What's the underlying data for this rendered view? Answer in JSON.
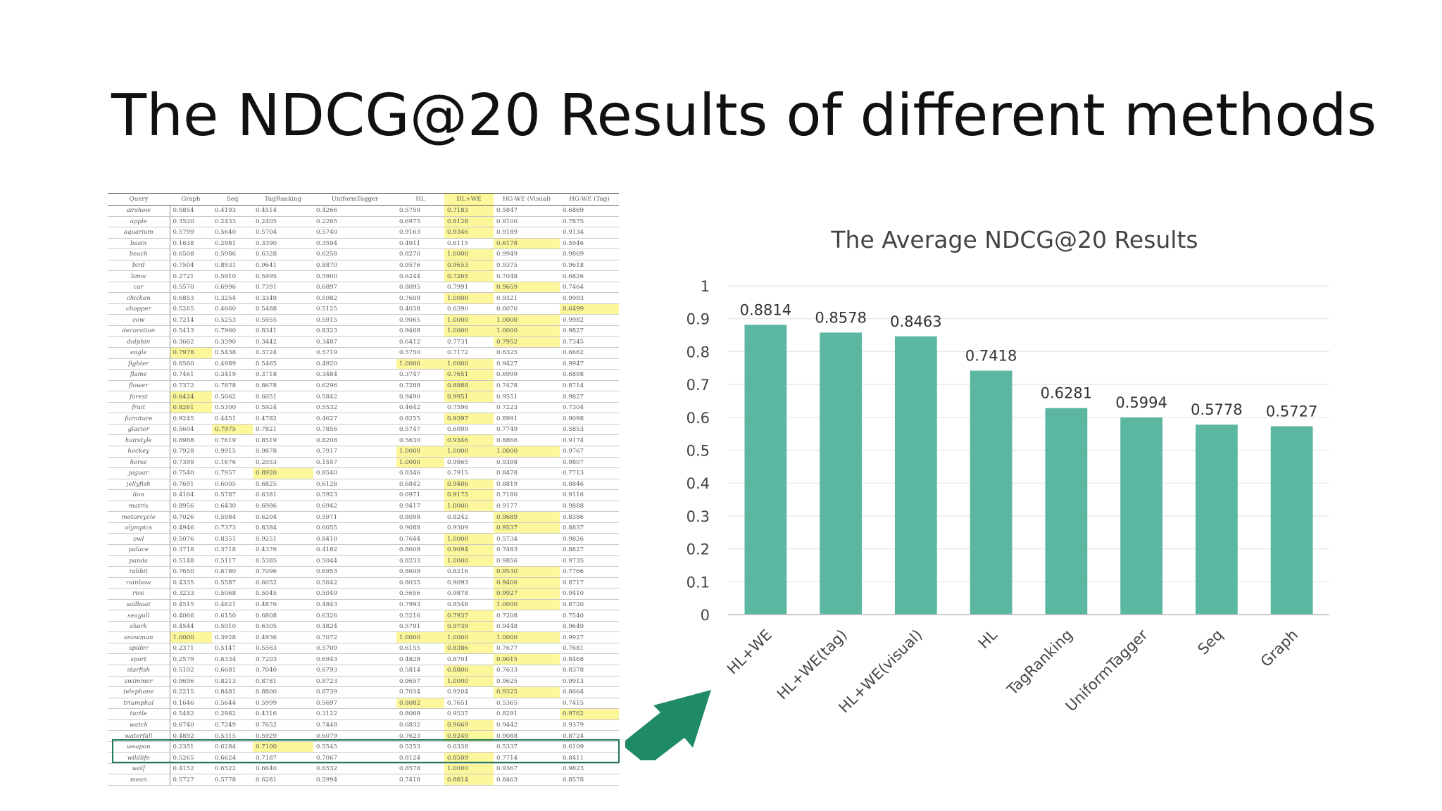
{
  "slide": {
    "title": "The NDCG@20 Results of different methods"
  },
  "table": {
    "columns": [
      "Query",
      "Graph",
      "Seq",
      "TagRanking",
      "UniformTagger",
      "HL",
      "HL+WE",
      "HG-WE (Visual)",
      "HG-WE (Tag)"
    ],
    "rows": [
      [
        "airshow",
        "0.5854",
        "0.4193",
        "0.4514",
        "0.4266",
        "0.5759",
        "0.7183",
        "0.5847",
        "0.6869"
      ],
      [
        "apple",
        "0.3520",
        "0.2433",
        "0.2405",
        "0.2265",
        "0.6975",
        "0.8128",
        "0.8100",
        "0.7875"
      ],
      [
        "aquarium",
        "0.5799",
        "0.5640",
        "0.5704",
        "0.5740",
        "0.9163",
        "0.9346",
        "0.9189",
        "0.9134"
      ],
      [
        "basin",
        "0.1638",
        "0.2981",
        "0.3390",
        "0.3594",
        "0.4911",
        "0.6115",
        "0.6178",
        "0.5946"
      ],
      [
        "beach",
        "0.6508",
        "0.5986",
        "0.6328",
        "0.6258",
        "0.8270",
        "1.0000",
        "0.9949",
        "0.9869"
      ],
      [
        "bird",
        "0.7504",
        "0.8931",
        "0.9641",
        "0.8870",
        "0.9576",
        "0.9653",
        "0.9375",
        "0.9618"
      ],
      [
        "bmw",
        "0.2721",
        "0.5910",
        "0.5995",
        "0.5900",
        "0.6244",
        "0.7265",
        "0.7048",
        "0.6826"
      ],
      [
        "car",
        "0.5570",
        "0.6996",
        "0.7391",
        "0.6897",
        "0.8095",
        "0.7991",
        "0.9659",
        "0.7464"
      ],
      [
        "chicken",
        "0.6853",
        "0.3254",
        "0.3349",
        "0.5982",
        "0.7609",
        "1.0000",
        "0.9321",
        "0.9993"
      ],
      [
        "chopper",
        "0.5265",
        "0.4660",
        "0.5488",
        "0.5125",
        "0.4038",
        "0.6390",
        "0.6076",
        "0.6499"
      ],
      [
        "cow",
        "0.7214",
        "0.5253",
        "0.5955",
        "0.5915",
        "0.9065",
        "1.0000",
        "1.0000",
        "0.9982"
      ],
      [
        "decoration",
        "0.5413",
        "0.7960",
        "0.8341",
        "0.8323",
        "0.9468",
        "1.0000",
        "1.0000",
        "0.9827"
      ],
      [
        "dolphin",
        "0.3662",
        "0.3390",
        "0.3442",
        "0.3487",
        "0.6412",
        "0.7731",
        "0.7952",
        "0.7345"
      ],
      [
        "eagle",
        "0.7978",
        "0.5438",
        "0.3724",
        "0.5719",
        "0.5750",
        "0.7172",
        "0.6325",
        "0.6662"
      ],
      [
        "fighter",
        "0.8560",
        "0.4989",
        "0.5465",
        "0.4920",
        "1.0000",
        "1.0000",
        "0.9427",
        "0.9947"
      ],
      [
        "flame",
        "0.7461",
        "0.3419",
        "0.3718",
        "0.3484",
        "0.3747",
        "0.7651",
        "0.6999",
        "0.6898"
      ],
      [
        "flower",
        "0.7372",
        "0.7878",
        "0.8678",
        "0.6296",
        "0.7288",
        "0.8888",
        "0.7478",
        "0.8714"
      ],
      [
        "forest",
        "0.6424",
        "0.5062",
        "0.6051",
        "0.5842",
        "0.9490",
        "0.9951",
        "0.9551",
        "0.9827"
      ],
      [
        "fruit",
        "0.8261",
        "0.5300",
        "0.5924",
        "0.5532",
        "0.4642",
        "0.7596",
        "0.7223",
        "0.7304"
      ],
      [
        "furniture",
        "0.9245",
        "0.4451",
        "0.4782",
        "0.4627",
        "0.8255",
        "0.9397",
        "0.8991",
        "0.9098"
      ],
      [
        "glacier",
        "0.5604",
        "0.7975",
        "0.7821",
        "0.7856",
        "0.5747",
        "0.6099",
        "0.7749",
        "0.5853"
      ],
      [
        "hairstyle",
        "0.8988",
        "0.7619",
        "0.8519",
        "0.8208",
        "0.5630",
        "0.9346",
        "0.8866",
        "0.9174"
      ],
      [
        "hockey",
        "0.7928",
        "0.9915",
        "0.9878",
        "0.7917",
        "1.0000",
        "1.0000",
        "1.0000",
        "0.9767"
      ],
      [
        "horse",
        "0.7399",
        "0.1676",
        "0.2053",
        "0.1557",
        "1.0000",
        "0.9865",
        "0.9398",
        "0.9807"
      ],
      [
        "jaguar",
        "0.7540",
        "0.7957",
        "0.8920",
        "0.8540",
        "0.8346",
        "0.7915",
        "0.8478",
        "0.7713"
      ],
      [
        "jellyfish",
        "0.7691",
        "0.6005",
        "0.6825",
        "0.6128",
        "0.6842",
        "0.9406",
        "0.8819",
        "0.8846"
      ],
      [
        "lion",
        "0.4164",
        "0.5787",
        "0.6381",
        "0.5923",
        "0.6971",
        "0.9175",
        "0.7180",
        "0.9116"
      ],
      [
        "matrix",
        "0.8956",
        "0.6430",
        "0.6986",
        "0.6942",
        "0.9417",
        "1.0000",
        "0.9177",
        "0.9888"
      ],
      [
        "motorcycle",
        "0.7026",
        "0.5984",
        "0.6204",
        "0.5971",
        "0.8098",
        "0.8242",
        "0.9689",
        "0.8386"
      ],
      [
        "olympics",
        "0.4946",
        "0.7373",
        "0.8384",
        "0.6055",
        "0.9088",
        "0.9309",
        "0.9537",
        "0.8837"
      ],
      [
        "owl",
        "0.5076",
        "0.8351",
        "0.9251",
        "0.8410",
        "0.7644",
        "1.0000",
        "0.5734",
        "0.9826"
      ],
      [
        "palace",
        "0.3718",
        "0.3718",
        "0.4376",
        "0.4182",
        "0.8608",
        "0.9094",
        "0.7483",
        "0.8827"
      ],
      [
        "panda",
        "0.5148",
        "0.5117",
        "0.5385",
        "0.5044",
        "0.8233",
        "1.0000",
        "0.9856",
        "0.9735"
      ],
      [
        "rabbit",
        "0.7650",
        "0.6780",
        "0.7096",
        "0.6953",
        "0.8609",
        "0.8216",
        "0.9530",
        "0.7766"
      ],
      [
        "rainbow",
        "0.4335",
        "0.5587",
        "0.6052",
        "0.5642",
        "0.8035",
        "0.9093",
        "0.9406",
        "0.8717"
      ],
      [
        "rice",
        "0.3233",
        "0.5068",
        "0.5045",
        "0.5049",
        "0.5656",
        "0.9878",
        "0.9927",
        "0.9410"
      ],
      [
        "sailboat",
        "0.4515",
        "0.4621",
        "0.4876",
        "0.4843",
        "0.7993",
        "0.8548",
        "1.0000",
        "0.8720"
      ],
      [
        "seagull",
        "0.4066",
        "0.6150",
        "0.6808",
        "0.6326",
        "0.5216",
        "0.7937",
        "0.7208",
        "0.7540"
      ],
      [
        "shark",
        "0.4544",
        "0.5010",
        "0.6305",
        "0.4824",
        "0.5791",
        "0.9739",
        "0.9448",
        "0.9649"
      ],
      [
        "snowman",
        "1.0000",
        "0.3928",
        "0.4936",
        "0.7072",
        "1.0000",
        "1.0000",
        "1.0000",
        "0.9927"
      ],
      [
        "spider",
        "0.2371",
        "0.5147",
        "0.5563",
        "0.5709",
        "0.6155",
        "0.8386",
        "0.7677",
        "0.7681"
      ],
      [
        "sport",
        "0.2579",
        "0.6334",
        "0.7203",
        "0.6943",
        "0.4828",
        "0.8701",
        "0.9015",
        "0.8468"
      ],
      [
        "starfish",
        "0.5102",
        "0.6681",
        "0.7040",
        "0.6793",
        "0.5814",
        "0.8806",
        "0.7633",
        "0.8378"
      ],
      [
        "swimmer",
        "0.9696",
        "0.8213",
        "0.8781",
        "0.9723",
        "0.9657",
        "1.0000",
        "0.9625",
        "0.9913"
      ],
      [
        "telephone",
        "0.2215",
        "0.8481",
        "0.8800",
        "0.8739",
        "0.7034",
        "0.9204",
        "0.9325",
        "0.8664"
      ],
      [
        "triumphal",
        "0.1646",
        "0.5644",
        "0.5999",
        "0.5697",
        "0.8082",
        "0.7651",
        "0.5365",
        "0.7415"
      ],
      [
        "turtle",
        "0.5482",
        "0.2982",
        "0.4316",
        "0.3122",
        "0.8069",
        "0.9537",
        "0.8291",
        "0.9762"
      ],
      [
        "watch",
        "0.6740",
        "0.7249",
        "0.7652",
        "0.7448",
        "0.6832",
        "0.9669",
        "0.9442",
        "0.9379"
      ],
      [
        "waterfall",
        "0.4892",
        "0.5315",
        "0.5929",
        "0.6079",
        "0.7623",
        "0.9249",
        "0.9088",
        "0.8724"
      ],
      [
        "weapon",
        "0.2351",
        "0.6284",
        "0.7100",
        "0.5545",
        "0.5253",
        "0.6338",
        "0.5337",
        "0.6109"
      ],
      [
        "wildlife",
        "0.5265",
        "0.6624",
        "0.7187",
        "0.7067",
        "0.8124",
        "0.8509",
        "0.7714",
        "0.8411"
      ],
      [
        "wolf",
        "0.4152",
        "0.6522",
        "0.6640",
        "0.6532",
        "0.8578",
        "1.0000",
        "0.9367",
        "0.9823"
      ],
      [
        "mean",
        "0.5727",
        "0.5778",
        "0.6281",
        "0.5994",
        "0.7418",
        "0.8814",
        "0.8463",
        "0.8578"
      ]
    ],
    "highlighted": [
      [
        0,
        6
      ],
      [
        1,
        6
      ],
      [
        2,
        6
      ],
      [
        3,
        7
      ],
      [
        4,
        6
      ],
      [
        5,
        6
      ],
      [
        6,
        6
      ],
      [
        7,
        7
      ],
      [
        8,
        6
      ],
      [
        9,
        8
      ],
      [
        10,
        6
      ],
      [
        10,
        7
      ],
      [
        11,
        6
      ],
      [
        11,
        7
      ],
      [
        12,
        7
      ],
      [
        13,
        1
      ],
      [
        14,
        5
      ],
      [
        14,
        6
      ],
      [
        15,
        6
      ],
      [
        16,
        6
      ],
      [
        17,
        1
      ],
      [
        17,
        6
      ],
      [
        18,
        1
      ],
      [
        19,
        6
      ],
      [
        20,
        2
      ],
      [
        21,
        6
      ],
      [
        22,
        5
      ],
      [
        22,
        6
      ],
      [
        22,
        7
      ],
      [
        23,
        5
      ],
      [
        24,
        3
      ],
      [
        25,
        6
      ],
      [
        26,
        6
      ],
      [
        27,
        6
      ],
      [
        28,
        7
      ],
      [
        29,
        7
      ],
      [
        30,
        6
      ],
      [
        31,
        6
      ],
      [
        32,
        6
      ],
      [
        33,
        7
      ],
      [
        34,
        7
      ],
      [
        35,
        7
      ],
      [
        36,
        7
      ],
      [
        37,
        6
      ],
      [
        38,
        6
      ],
      [
        39,
        1
      ],
      [
        39,
        5
      ],
      [
        39,
        6
      ],
      [
        39,
        7
      ],
      [
        40,
        6
      ],
      [
        41,
        7
      ],
      [
        42,
        6
      ],
      [
        43,
        6
      ],
      [
        44,
        7
      ],
      [
        45,
        5
      ],
      [
        46,
        8
      ],
      [
        47,
        6
      ],
      [
        48,
        6
      ],
      [
        49,
        3
      ],
      [
        50,
        6
      ],
      [
        51,
        6
      ],
      [
        52,
        6
      ]
    ],
    "highlight_color": "#fbf79a"
  },
  "chart_data": {
    "type": "bar",
    "title": "The Average NDCG@20 Results",
    "categories": [
      "HL+WE",
      "HL+WE(tag)",
      "HL+WE(visual)",
      "HL",
      "TagRanking",
      "UniformTagger",
      "Seq",
      "Graph"
    ],
    "values": [
      0.8814,
      0.8578,
      0.8463,
      0.7418,
      0.6281,
      0.5994,
      0.5778,
      0.5727
    ],
    "value_labels": [
      "0.8814",
      "0.8578",
      "0.8463",
      "0.7418",
      "0.6281",
      "0.5994",
      "0.5778",
      "0.5727"
    ],
    "ylim": [
      0,
      1
    ],
    "yticks": [
      "0",
      "0.1",
      "0.2",
      "0.3",
      "0.4",
      "0.5",
      "0.6",
      "0.7",
      "0.8",
      "0.9",
      "1"
    ],
    "grid": true,
    "bar_color": "#5bb7a0",
    "xlabel": "",
    "ylabel": ""
  },
  "arrow": {
    "color": "#1f8a66"
  },
  "mean_box": {
    "color": "#1e7a55"
  }
}
